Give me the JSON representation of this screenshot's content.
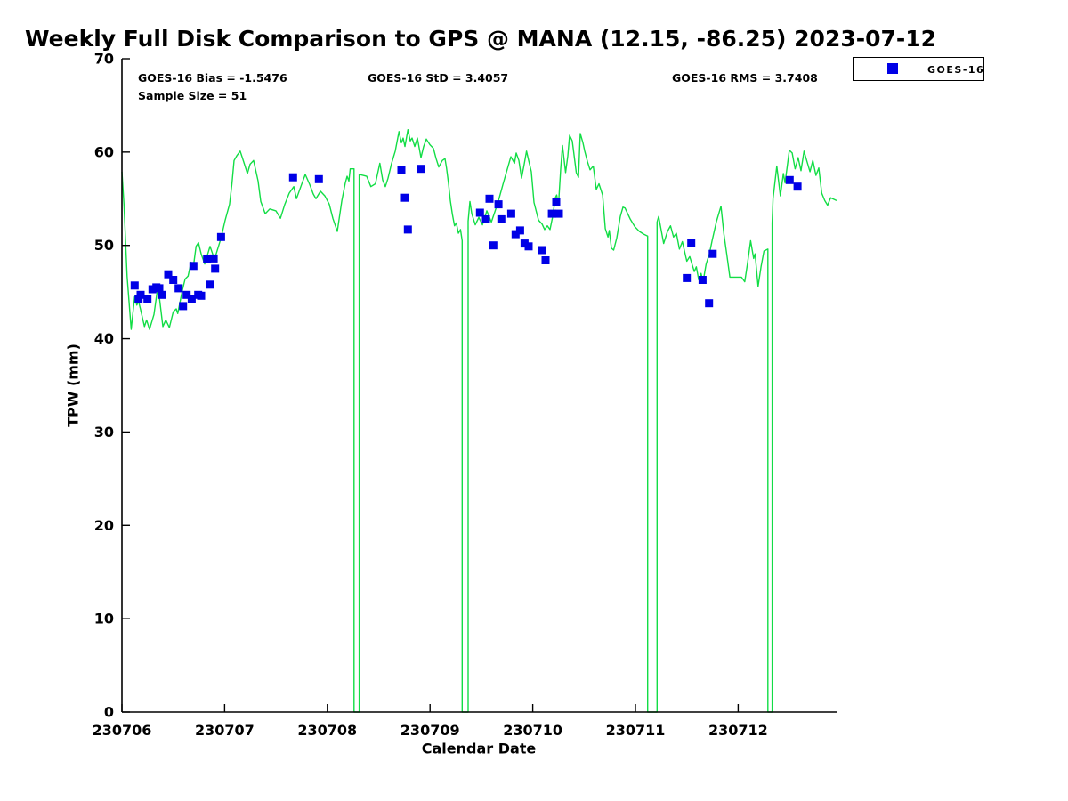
{
  "title": "Weekly Full Disk Comparison to GPS @ MANA (12.15, -86.25) 2023-07-12",
  "stats": {
    "bias": "GOES-16 Bias = -1.5476",
    "std": "GOES-16 StD = 3.4057",
    "rms": "GOES-16 RMS = 3.7408",
    "sample_size": "Sample Size = 51"
  },
  "legend": {
    "entries": [
      {
        "label": "GOES-16",
        "marker": "square",
        "color": "#0000e6"
      }
    ]
  },
  "colors": {
    "gps_line": "#12dd45",
    "goes16_marker": "#0000e6",
    "axis": "#000000"
  },
  "chart_data": {
    "type": "line+scatter",
    "title": "Weekly Full Disk Comparison to GPS @ MANA (12.15, -86.25) 2023-07-12",
    "xlabel": "Calendar Date",
    "ylabel": "TPW (mm)",
    "ylim": [
      0,
      70
    ],
    "grid": false,
    "legend_position": "top-right-outside",
    "x_ticks": [
      "230706",
      "230707",
      "230708",
      "230709",
      "230710",
      "230711",
      "230712"
    ],
    "x_tick_days": [
      0,
      1,
      2,
      3,
      4,
      5,
      6
    ],
    "y_ticks": [
      "0",
      "10",
      "20",
      "30",
      "40",
      "50",
      "60",
      "70"
    ],
    "y_tick_values": [
      0,
      10,
      20,
      30,
      40,
      50,
      60,
      70
    ],
    "series": [
      {
        "name": "GPS TPW line",
        "type": "line",
        "color": "#12dd45",
        "x_unit": "days since 230706",
        "points": [
          [
            0,
            57.9
          ],
          [
            0.02,
            54.4
          ],
          [
            0.05,
            46.7
          ],
          [
            0.09,
            41.0
          ],
          [
            0.124,
            44.5
          ],
          [
            0.145,
            43.6
          ],
          [
            0.162,
            44.0
          ],
          [
            0.182,
            43.1
          ],
          [
            0.219,
            41.3
          ],
          [
            0.24,
            42.0
          ],
          [
            0.269,
            41.0
          ],
          [
            0.312,
            42.6
          ],
          [
            0.34,
            44.8
          ],
          [
            0.355,
            45.3
          ],
          [
            0.399,
            41.3
          ],
          [
            0.427,
            42.0
          ],
          [
            0.462,
            41.2
          ],
          [
            0.5,
            42.9
          ],
          [
            0.529,
            43.2
          ],
          [
            0.543,
            42.7
          ],
          [
            0.587,
            45.1
          ],
          [
            0.615,
            46.4
          ],
          [
            0.644,
            46.7
          ],
          [
            0.673,
            48.2
          ],
          [
            0.693,
            47.5
          ],
          [
            0.722,
            49.9
          ],
          [
            0.745,
            50.3
          ],
          [
            0.771,
            49.1
          ],
          [
            0.806,
            48.0
          ],
          [
            0.858,
            49.9
          ],
          [
            0.901,
            48.5
          ],
          [
            0.965,
            50.8
          ],
          [
            1.005,
            52.7
          ],
          [
            1.048,
            54.4
          ],
          [
            1.07,
            56.5
          ],
          [
            1.092,
            59.1
          ],
          [
            1.118,
            59.6
          ],
          [
            1.152,
            60.1
          ],
          [
            1.187,
            58.9
          ],
          [
            1.222,
            57.7
          ],
          [
            1.248,
            58.7
          ],
          [
            1.282,
            59.1
          ],
          [
            1.326,
            56.9
          ],
          [
            1.352,
            54.7
          ],
          [
            1.395,
            53.4
          ],
          [
            1.439,
            53.9
          ],
          [
            1.499,
            53.7
          ],
          [
            1.543,
            52.9
          ],
          [
            1.586,
            54.4
          ],
          [
            1.629,
            55.6
          ],
          [
            1.673,
            56.3
          ],
          [
            1.699,
            55.0
          ],
          [
            1.742,
            56.3
          ],
          [
            1.785,
            57.6
          ],
          [
            1.829,
            56.5
          ],
          [
            1.863,
            55.5
          ],
          [
            1.889,
            55.0
          ],
          [
            1.933,
            55.8
          ],
          [
            1.976,
            55.3
          ],
          [
            2.019,
            54.4
          ],
          [
            2.054,
            52.9
          ],
          [
            2.097,
            51.5
          ],
          [
            2.141,
            54.8
          ],
          [
            2.175,
            56.7
          ],
          [
            2.192,
            57.4
          ],
          [
            2.21,
            56.9
          ],
          [
            2.223,
            58.2
          ],
          [
            2.26,
            58.2
          ],
          [
            2.26,
            0
          ],
          [
            2.31,
            0
          ],
          [
            2.31,
            57.6
          ],
          [
            2.349,
            57.5
          ],
          [
            2.383,
            57.4
          ],
          [
            2.424,
            56.3
          ],
          [
            2.468,
            56.6
          ],
          [
            2.511,
            58.8
          ],
          [
            2.539,
            57.0
          ],
          [
            2.565,
            56.3
          ],
          [
            2.591,
            57.2
          ],
          [
            2.626,
            58.8
          ],
          [
            2.661,
            60.1
          ],
          [
            2.698,
            62.2
          ],
          [
            2.721,
            61.0
          ],
          [
            2.738,
            61.5
          ],
          [
            2.756,
            60.6
          ],
          [
            2.784,
            62.4
          ],
          [
            2.808,
            61.2
          ],
          [
            2.825,
            61.5
          ],
          [
            2.851,
            60.6
          ],
          [
            2.877,
            61.5
          ],
          [
            2.912,
            59.4
          ],
          [
            2.938,
            60.6
          ],
          [
            2.964,
            61.4
          ],
          [
            2.998,
            60.8
          ],
          [
            3.033,
            60.4
          ],
          [
            3.059,
            59.3
          ],
          [
            3.085,
            58.4
          ],
          [
            3.12,
            59.1
          ],
          [
            3.146,
            59.3
          ],
          [
            3.16,
            58.3
          ],
          [
            3.18,
            56.6
          ],
          [
            3.198,
            54.8
          ],
          [
            3.217,
            53.4
          ],
          [
            3.238,
            52.1
          ],
          [
            3.256,
            52.4
          ],
          [
            3.276,
            51.3
          ],
          [
            3.296,
            51.7
          ],
          [
            3.313,
            50.5
          ],
          [
            3.313,
            0
          ],
          [
            3.371,
            0
          ],
          [
            3.371,
            52.6
          ],
          [
            3.388,
            54.7
          ],
          [
            3.406,
            53.4
          ],
          [
            3.44,
            52.2
          ],
          [
            3.475,
            53.0
          ],
          [
            3.51,
            52.2
          ],
          [
            3.553,
            53.7
          ],
          [
            3.597,
            52.5
          ],
          [
            3.631,
            53.6
          ],
          [
            3.666,
            54.8
          ],
          [
            3.709,
            56.5
          ],
          [
            3.753,
            58.2
          ],
          [
            3.787,
            59.5
          ],
          [
            3.822,
            58.8
          ],
          [
            3.839,
            59.9
          ],
          [
            3.865,
            59.1
          ],
          [
            3.891,
            57.2
          ],
          [
            3.917,
            58.7
          ],
          [
            3.939,
            60.1
          ],
          [
            3.96,
            59.1
          ],
          [
            3.986,
            57.9
          ],
          [
            4.012,
            54.6
          ],
          [
            4.056,
            52.7
          ],
          [
            4.09,
            52.3
          ],
          [
            4.116,
            51.7
          ],
          [
            4.142,
            52.1
          ],
          [
            4.168,
            51.7
          ],
          [
            4.194,
            53.1
          ],
          [
            4.22,
            55.1
          ],
          [
            4.233,
            55.4
          ],
          [
            4.25,
            54.3
          ],
          [
            4.272,
            58.2
          ],
          [
            4.289,
            60.7
          ],
          [
            4.32,
            57.8
          ],
          [
            4.341,
            59.6
          ],
          [
            4.359,
            61.8
          ],
          [
            4.385,
            61.2
          ],
          [
            4.424,
            57.8
          ],
          [
            4.445,
            57.3
          ],
          [
            4.463,
            62.0
          ],
          [
            4.489,
            61.0
          ],
          [
            4.506,
            60.1
          ],
          [
            4.532,
            59.0
          ],
          [
            4.558,
            58.1
          ],
          [
            4.589,
            58.5
          ],
          [
            4.619,
            56.0
          ],
          [
            4.645,
            56.6
          ],
          [
            4.68,
            55.4
          ],
          [
            4.706,
            51.8
          ],
          [
            4.732,
            50.9
          ],
          [
            4.745,
            51.6
          ],
          [
            4.766,
            49.7
          ],
          [
            4.788,
            49.5
          ],
          [
            4.818,
            50.8
          ],
          [
            4.853,
            53.1
          ],
          [
            4.879,
            54.1
          ],
          [
            4.899,
            54.0
          ],
          [
            4.951,
            52.8
          ],
          [
            4.994,
            52.0
          ],
          [
            5.038,
            51.5
          ],
          [
            5.081,
            51.2
          ],
          [
            5.119,
            51.0
          ],
          [
            5.119,
            0
          ],
          [
            5.211,
            0
          ],
          [
            5.211,
            52.5
          ],
          [
            5.226,
            53.1
          ],
          [
            5.275,
            50.2
          ],
          [
            5.312,
            51.5
          ],
          [
            5.341,
            52.1
          ],
          [
            5.371,
            50.9
          ],
          [
            5.399,
            51.3
          ],
          [
            5.428,
            49.6
          ],
          [
            5.457,
            50.4
          ],
          [
            5.5,
            48.3
          ],
          [
            5.529,
            48.8
          ],
          [
            5.573,
            47.2
          ],
          [
            5.593,
            47.7
          ],
          [
            5.616,
            46.3
          ],
          [
            5.639,
            47.0
          ],
          [
            5.659,
            46.1
          ],
          [
            5.688,
            48.0
          ],
          [
            5.72,
            49.1
          ],
          [
            5.746,
            50.5
          ],
          [
            5.789,
            52.6
          ],
          [
            5.833,
            54.2
          ],
          [
            5.861,
            51.2
          ],
          [
            5.891,
            48.9
          ],
          [
            5.919,
            46.6
          ],
          [
            6.032,
            46.6
          ],
          [
            6.064,
            46.1
          ],
          [
            6.093,
            48.2
          ],
          [
            6.121,
            50.5
          ],
          [
            6.151,
            48.6
          ],
          [
            6.165,
            49.1
          ],
          [
            6.194,
            45.6
          ],
          [
            6.223,
            47.7
          ],
          [
            6.251,
            49.4
          ],
          [
            6.289,
            49.6
          ],
          [
            6.289,
            0
          ],
          [
            6.331,
            0
          ],
          [
            6.331,
            52.4
          ],
          [
            6.34,
            55.0
          ],
          [
            6.376,
            58.5
          ],
          [
            6.411,
            55.3
          ],
          [
            6.44,
            57.7
          ],
          [
            6.457,
            56.7
          ],
          [
            6.498,
            60.2
          ],
          [
            6.526,
            59.9
          ],
          [
            6.555,
            58.2
          ],
          [
            6.584,
            59.4
          ],
          [
            6.612,
            58.0
          ],
          [
            6.641,
            60.1
          ],
          [
            6.67,
            59.0
          ],
          [
            6.699,
            57.9
          ],
          [
            6.727,
            59.1
          ],
          [
            6.757,
            57.5
          ],
          [
            6.785,
            58.3
          ],
          [
            6.814,
            55.6
          ],
          [
            6.843,
            54.8
          ],
          [
            6.871,
            54.3
          ],
          [
            6.9,
            55.1
          ],
          [
            6.958,
            54.8
          ]
        ]
      },
      {
        "name": "GOES-16",
        "type": "scatter",
        "color": "#0000e6",
        "marker": "square",
        "sample_size": 51,
        "points": [
          [
            0.124,
            45.7
          ],
          [
            0.162,
            44.2
          ],
          [
            0.182,
            44.7
          ],
          [
            0.249,
            44.2
          ],
          [
            0.297,
            45.3
          ],
          [
            0.335,
            45.5
          ],
          [
            0.364,
            45.4
          ],
          [
            0.393,
            44.7
          ],
          [
            0.451,
            46.9
          ],
          [
            0.5,
            46.3
          ],
          [
            0.552,
            45.4
          ],
          [
            0.595,
            43.5
          ],
          [
            0.63,
            44.7
          ],
          [
            0.679,
            44.3
          ],
          [
            0.696,
            47.8
          ],
          [
            0.743,
            44.7
          ],
          [
            0.771,
            44.6
          ],
          [
            0.829,
            48.5
          ],
          [
            0.858,
            45.8
          ],
          [
            0.893,
            48.6
          ],
          [
            0.907,
            47.5
          ],
          [
            0.965,
            50.9
          ],
          [
            1.666,
            57.3
          ],
          [
            1.918,
            57.1
          ],
          [
            2.721,
            58.1
          ],
          [
            2.756,
            55.1
          ],
          [
            2.784,
            51.7
          ],
          [
            2.909,
            58.2
          ],
          [
            3.486,
            53.5
          ],
          [
            3.544,
            52.8
          ],
          [
            3.579,
            55.0
          ],
          [
            3.616,
            50.0
          ],
          [
            3.666,
            54.4
          ],
          [
            3.694,
            52.8
          ],
          [
            3.79,
            53.4
          ],
          [
            3.833,
            51.2
          ],
          [
            3.877,
            51.6
          ],
          [
            3.92,
            50.2
          ],
          [
            3.96,
            49.9
          ],
          [
            4.086,
            49.5
          ],
          [
            4.125,
            48.4
          ],
          [
            4.186,
            53.4
          ],
          [
            4.229,
            54.6
          ],
          [
            4.255,
            53.4
          ],
          [
            5.5,
            46.5
          ],
          [
            5.543,
            50.3
          ],
          [
            5.653,
            46.3
          ],
          [
            5.717,
            43.8
          ],
          [
            5.752,
            49.1
          ],
          [
            6.502,
            57.0
          ],
          [
            6.578,
            56.3
          ]
        ]
      }
    ]
  }
}
